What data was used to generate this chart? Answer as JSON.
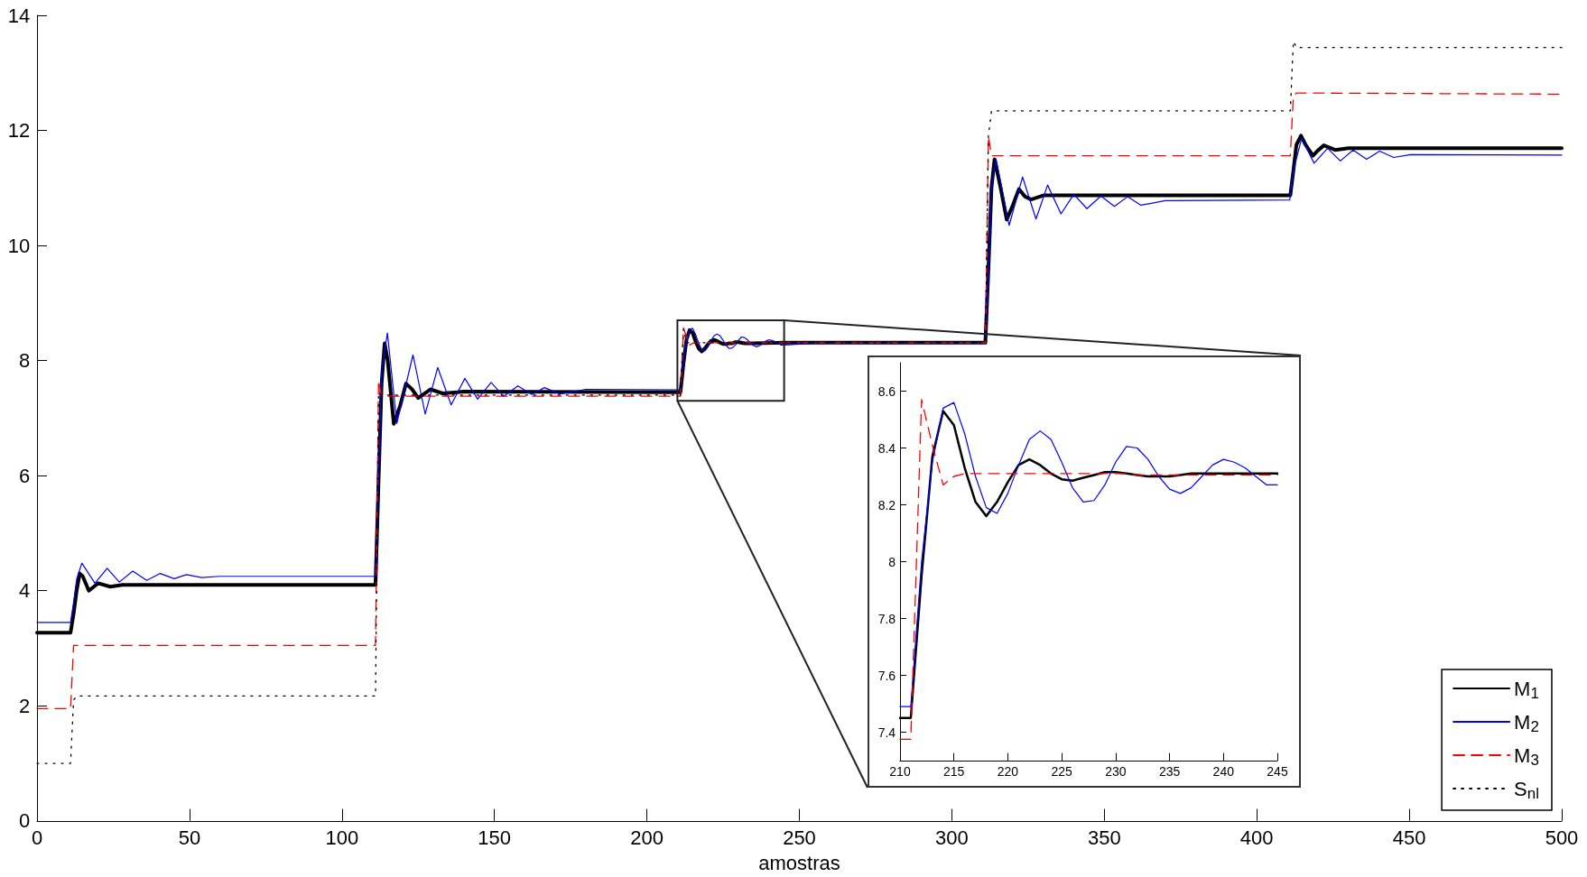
{
  "chart_data": [
    {
      "type": "line",
      "xlabel": "amostras",
      "xlim": [
        0,
        500
      ],
      "xticks": [
        0,
        50,
        100,
        150,
        200,
        250,
        300,
        350,
        400,
        450,
        500
      ],
      "ylim": [
        0,
        14
      ],
      "yticks": [
        0,
        2,
        4,
        6,
        8,
        10,
        12,
        14
      ],
      "grid": false,
      "legend": "bottom right",
      "marker": "none",
      "series": [
        {
          "name": "M$_{1}$",
          "color": "#000000",
          "line_style": "solid",
          "x": [
            0,
            11,
            12,
            13,
            14,
            15,
            17,
            20,
            24,
            28,
            111,
            112,
            113,
            114,
            115,
            117,
            119,
            121,
            123,
            125,
            129,
            133,
            140,
            211,
            212,
            213,
            214,
            215,
            216,
            217,
            218,
            219,
            220,
            221,
            222,
            223,
            224,
            225,
            226,
            227,
            228,
            229,
            230,
            232,
            235,
            245,
            311,
            312,
            313,
            314,
            316,
            318,
            320,
            322,
            324,
            326,
            330,
            411,
            412,
            413,
            414.5,
            416,
            418.4,
            420,
            422,
            425.7,
            430,
            500
          ],
          "values": [
            3.27,
            3.27,
            3.6,
            4.0,
            4.3,
            4.25,
            4.0,
            4.13,
            4.07,
            4.1,
            4.1,
            5.9,
            7.6,
            8.3,
            8.0,
            6.9,
            7.2,
            7.6,
            7.5,
            7.35,
            7.5,
            7.43,
            7.46,
            7.45,
            7.95,
            8.37,
            8.53,
            8.48,
            8.33,
            8.21,
            8.16,
            8.21,
            8.28,
            8.34,
            8.36,
            8.34,
            8.31,
            8.29,
            8.29,
            8.3,
            8.3,
            8.32,
            8.32,
            8.3,
            8.3,
            8.31,
            8.31,
            9.6,
            11.0,
            11.5,
            11.0,
            10.45,
            10.7,
            10.98,
            10.85,
            10.8,
            10.87,
            10.87,
            11.3,
            11.75,
            11.91,
            11.75,
            11.56,
            11.65,
            11.74,
            11.66,
            11.69,
            11.69
          ]
        },
        {
          "name": "M$_{2}$",
          "color": "#0000ff",
          "line_style": "solid",
          "x": [
            0,
            11,
            12,
            13,
            14.7,
            19,
            23,
            27,
            31.4,
            36,
            40.4,
            45,
            49,
            54,
            60,
            111,
            112,
            113,
            114.9,
            118,
            123.3,
            127.3,
            131.4,
            135.8,
            140.3,
            144.5,
            148.9,
            153,
            157.7,
            162.3,
            166.4,
            171.5,
            180,
            211,
            212,
            213,
            214,
            215,
            216,
            217,
            218,
            219,
            220,
            221,
            222,
            223,
            224,
            225,
            226,
            227,
            228,
            229,
            230,
            231,
            232,
            233,
            234,
            235,
            236,
            237,
            238,
            239,
            240,
            241,
            242,
            243,
            244,
            245,
            255,
            311,
            312,
            313,
            314.5,
            318.8,
            323.2,
            327.6,
            331.4,
            335.8,
            340,
            344.3,
            348.9,
            353.3,
            357.7,
            362,
            370,
            410.8,
            412,
            414.7,
            418.8,
            423.2,
            427.4,
            431.6,
            436,
            440.3,
            444.9,
            450.4,
            500
          ],
          "values": [
            3.45,
            3.45,
            3.8,
            4.2,
            4.48,
            4.13,
            4.39,
            4.15,
            4.34,
            4.18,
            4.3,
            4.21,
            4.28,
            4.23,
            4.25,
            4.25,
            6.0,
            7.8,
            8.48,
            6.91,
            8.1,
            7.07,
            7.88,
            7.23,
            7.69,
            7.33,
            7.62,
            7.38,
            7.56,
            7.41,
            7.53,
            7.42,
            7.5,
            7.49,
            8.0,
            8.35,
            8.54,
            8.56,
            8.45,
            8.3,
            8.19,
            8.17,
            8.24,
            8.34,
            8.43,
            8.46,
            8.43,
            8.35,
            8.26,
            8.21,
            8.22,
            8.27,
            8.35,
            8.41,
            8.4,
            8.36,
            8.3,
            8.26,
            8.24,
            8.26,
            8.3,
            8.34,
            8.36,
            8.35,
            8.33,
            8.3,
            8.27,
            8.27,
            8.3,
            8.3,
            9.6,
            11.0,
            11.5,
            10.35,
            11.19,
            10.46,
            11.05,
            10.55,
            10.89,
            10.64,
            10.86,
            10.68,
            10.85,
            10.7,
            10.78,
            10.79,
            11.3,
            11.86,
            11.43,
            11.69,
            11.47,
            11.66,
            11.5,
            11.64,
            11.53,
            11.58,
            11.57
          ]
        },
        {
          "name": "M$_{3}$",
          "color": "#ff0000",
          "line_style": "dashed",
          "x": [
            0,
            11,
            12,
            111,
            112,
            113,
            211,
            212,
            213,
            214,
            215,
            216,
            245,
            311,
            312,
            313,
            411,
            412,
            413,
            500
          ],
          "values": [
            1.95,
            1.95,
            3.05,
            3.05,
            7.65,
            7.38,
            7.38,
            8.57,
            8.41,
            8.27,
            8.3,
            8.31,
            8.31,
            8.31,
            11.9,
            11.56,
            11.56,
            12.6,
            12.65,
            12.63
          ]
        },
        {
          "name": "S$_{nl}$",
          "color": "#000000",
          "line_style": "dotted",
          "x": [
            0,
            11,
            12,
            13,
            111,
            112,
            113,
            211,
            212,
            213,
            311,
            312,
            313,
            411,
            412,
            413,
            500
          ],
          "values": [
            1.0,
            1.0,
            2.1,
            2.17,
            2.17,
            7.45,
            7.4,
            7.4,
            8.55,
            8.31,
            8.31,
            11.9,
            12.34,
            12.34,
            13.55,
            13.44,
            13.44
          ]
        }
      ]
    },
    {
      "type": "line",
      "xlim": [
        210,
        245
      ],
      "xticks": [
        210,
        215,
        220,
        225,
        230,
        235,
        240,
        245
      ],
      "ylim": [
        7.3,
        8.7
      ],
      "yticks": [
        7.4,
        7.6,
        7.8,
        8,
        8.2,
        8.4,
        8.6
      ],
      "grid": false,
      "legend": false,
      "marker": "none",
      "x": [
        210,
        211,
        212,
        213,
        214,
        215,
        216,
        217,
        218,
        219,
        220,
        221,
        222,
        223,
        224,
        225,
        226,
        227,
        228,
        229,
        230,
        231,
        232,
        233,
        234,
        235,
        236,
        237,
        238,
        239,
        240,
        241,
        242,
        243,
        244,
        245
      ],
      "series": [
        {
          "color": "#000000",
          "line_style": "solid",
          "values": [
            7.45,
            7.45,
            7.95,
            8.37,
            8.53,
            8.48,
            8.33,
            8.21,
            8.16,
            8.21,
            8.28,
            8.34,
            8.36,
            8.34,
            8.31,
            8.29,
            8.285,
            8.295,
            8.305,
            8.315,
            8.315,
            8.31,
            8.305,
            8.3,
            8.3,
            8.3,
            8.305,
            8.31,
            8.31,
            8.31,
            8.31,
            8.31,
            8.31,
            8.31,
            8.31,
            8.31
          ]
        },
        {
          "color": "#0000ff",
          "line_style": "solid",
          "values": [
            7.49,
            7.49,
            8.0,
            8.35,
            8.54,
            8.56,
            8.45,
            8.3,
            8.19,
            8.17,
            8.24,
            8.34,
            8.43,
            8.46,
            8.43,
            8.35,
            8.26,
            8.21,
            8.215,
            8.27,
            8.35,
            8.405,
            8.4,
            8.36,
            8.3,
            8.255,
            8.24,
            8.26,
            8.3,
            8.34,
            8.36,
            8.35,
            8.33,
            8.3,
            8.27,
            8.27
          ]
        },
        {
          "color": "#ff0000",
          "line_style": "dashed",
          "values": [
            7.375,
            7.375,
            8.57,
            8.41,
            8.27,
            8.3,
            8.31,
            8.31,
            8.31,
            8.31,
            8.31,
            8.31,
            8.31,
            8.31,
            8.31,
            8.31,
            8.31,
            8.31,
            8.31,
            8.31,
            8.31,
            8.31,
            8.305,
            8.305,
            8.305,
            8.305,
            8.305,
            8.305,
            8.305,
            8.305,
            8.305,
            8.305,
            8.305,
            8.305,
            8.305,
            8.305
          ]
        }
      ]
    }
  ]
}
